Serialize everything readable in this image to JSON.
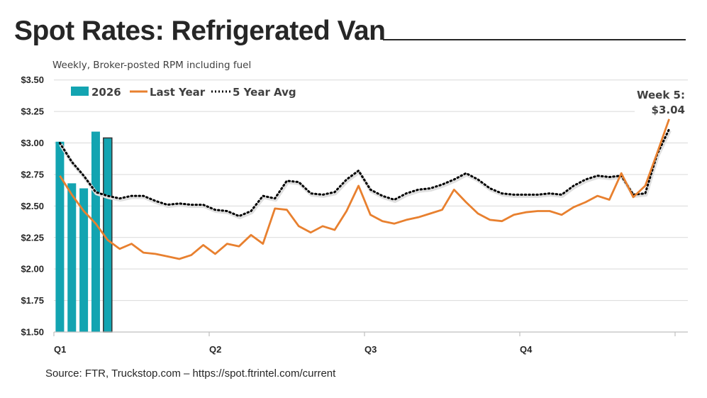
{
  "chart_data": {
    "type": "bar+line",
    "title": "Spot Rates: Refrigerated Van",
    "subtitle": "Weekly, Broker-posted RPM including fuel",
    "source": "Source: FTR, Truckstop.com – https://spot.ftrintel.com/current",
    "ylim": [
      1.5,
      3.5
    ],
    "y_ticks": [
      "$3.50",
      "$3.25",
      "$3.00",
      "$2.75",
      "$2.50",
      "$2.25",
      "$2.00",
      "$1.75",
      "$1.50"
    ],
    "y_tick_values": [
      3.5,
      3.25,
      3.0,
      2.75,
      2.5,
      2.25,
      2.0,
      1.75,
      1.5
    ],
    "x_ticks": [
      "Q1",
      "Q2",
      "Q3",
      "Q4"
    ],
    "x_unit": "week",
    "weeks": 52,
    "grid": true,
    "legend_position": "top-left",
    "annotation": {
      "line1": "Week 5:",
      "line2": "$3.04"
    },
    "series": [
      {
        "name": "2026",
        "type": "bar",
        "color": "#13a4b1",
        "weeks": [
          1,
          2,
          3,
          4,
          5
        ],
        "values": [
          3.01,
          2.68,
          2.64,
          3.09,
          3.04
        ]
      },
      {
        "name": "Last Year",
        "type": "line",
        "color": "#e8802f",
        "values": [
          2.74,
          2.59,
          2.46,
          2.36,
          2.23,
          2.16,
          2.2,
          2.13,
          2.12,
          2.1,
          2.08,
          2.11,
          2.19,
          2.12,
          2.2,
          2.18,
          2.27,
          2.2,
          2.48,
          2.47,
          2.34,
          2.29,
          2.34,
          2.31,
          2.46,
          2.66,
          2.43,
          2.38,
          2.36,
          2.39,
          2.41,
          2.44,
          2.47,
          2.63,
          2.53,
          2.44,
          2.39,
          2.38,
          2.43,
          2.45,
          2.46,
          2.46,
          2.43,
          2.49,
          2.53,
          2.58,
          2.55,
          2.76,
          2.57,
          2.66,
          2.92,
          3.19
        ]
      },
      {
        "name": "5 Year Avg",
        "type": "line",
        "style": "dotted",
        "color": "#000000",
        "values": [
          3.0,
          2.85,
          2.74,
          2.61,
          2.58,
          2.56,
          2.58,
          2.58,
          2.54,
          2.51,
          2.52,
          2.51,
          2.51,
          2.47,
          2.46,
          2.42,
          2.46,
          2.58,
          2.56,
          2.7,
          2.69,
          2.6,
          2.59,
          2.61,
          2.71,
          2.78,
          2.63,
          2.58,
          2.55,
          2.6,
          2.63,
          2.64,
          2.67,
          2.71,
          2.76,
          2.71,
          2.64,
          2.6,
          2.59,
          2.59,
          2.59,
          2.6,
          2.59,
          2.66,
          2.71,
          2.74,
          2.73,
          2.74,
          2.59,
          2.6,
          2.91,
          3.11
        ]
      }
    ]
  }
}
